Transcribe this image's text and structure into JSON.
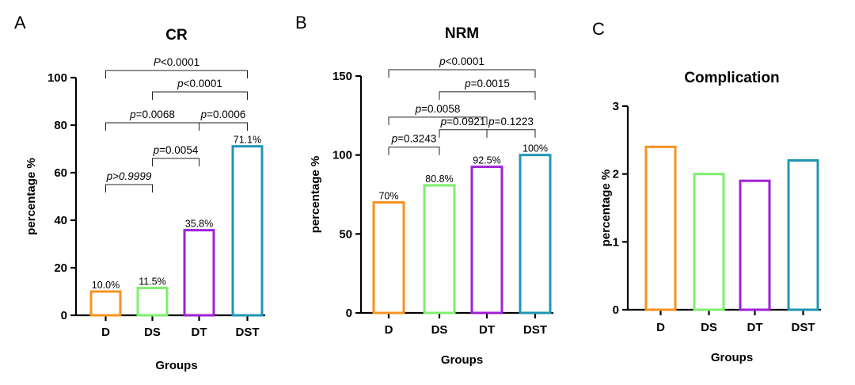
{
  "chart_data": [
    {
      "panel": "A",
      "type": "bar",
      "title": "CR",
      "xlabel": "Groups",
      "ylabel": "percentage %",
      "categories": [
        "D",
        "DS",
        "DT",
        "DST"
      ],
      "values": [
        10.0,
        11.5,
        35.8,
        71.1
      ],
      "data_labels": [
        "10.0%",
        "11.5%",
        "35.8%",
        "71.1%"
      ],
      "colors": [
        "#f7931e",
        "#7cf06b",
        "#a020d8",
        "#1f96b4"
      ],
      "ylim": [
        0,
        100
      ],
      "yticks": [
        0,
        20,
        40,
        60,
        80,
        100
      ],
      "grid": false,
      "comparisons": [
        {
          "from": 0,
          "to": 1,
          "y": 55,
          "prefix": "p",
          "text": ">0.9999"
        },
        {
          "from": 1,
          "to": 2,
          "y": 66,
          "prefix": "p",
          "text": "=0.0054"
        },
        {
          "from": 0,
          "to": 2,
          "y": 81,
          "prefix": "p",
          "text": "=0.0068"
        },
        {
          "from": 2,
          "to": 3,
          "y": 81,
          "prefix": "p",
          "text": "=0.0006"
        },
        {
          "from": 1,
          "to": 3,
          "y": 94,
          "prefix": "p",
          "text": "<0.0001"
        },
        {
          "from": 0,
          "to": 3,
          "y": 103,
          "prefix": "P",
          "text": "<0.0001"
        }
      ]
    },
    {
      "panel": "B",
      "type": "bar",
      "title": "NRM",
      "xlabel": "Groups",
      "ylabel": "percentage %",
      "categories": [
        "D",
        "DS",
        "DT",
        "DST"
      ],
      "values": [
        70,
        80.8,
        92.5,
        100
      ],
      "data_labels": [
        "70%",
        "80.8%",
        "92.5%",
        "100%"
      ],
      "colors": [
        "#f7931e",
        "#7cf06b",
        "#a020d8",
        "#1f96b4"
      ],
      "ylim": [
        0,
        150
      ],
      "yticks": [
        0,
        50,
        100,
        150
      ],
      "grid": false,
      "comparisons": [
        {
          "from": 0,
          "to": 1,
          "y": 105,
          "prefix": "p",
          "text": "=0.3243"
        },
        {
          "from": 1,
          "to": 2,
          "y": 116,
          "prefix": "p",
          "text": "=0.0921"
        },
        {
          "from": 2,
          "to": 3,
          "y": 116,
          "prefix": "p",
          "text": "=0.1223"
        },
        {
          "from": 0,
          "to": 2,
          "y": 124,
          "prefix": "p",
          "text": "=0.0058"
        },
        {
          "from": 1,
          "to": 3,
          "y": 140,
          "prefix": "p",
          "text": "=0.0015"
        },
        {
          "from": 0,
          "to": 3,
          "y": 154,
          "prefix": "p",
          "text": "<0.0001"
        }
      ]
    },
    {
      "panel": "C",
      "type": "bar",
      "title": "Complication",
      "xlabel": "Groups",
      "ylabel": "percentage %",
      "categories": [
        "D",
        "DS",
        "DT",
        "DST"
      ],
      "values": [
        2.4,
        2.0,
        1.9,
        2.2
      ],
      "data_labels": [],
      "colors": [
        "#f7931e",
        "#7cf06b",
        "#a020d8",
        "#1f96b4"
      ],
      "ylim": [
        0,
        3
      ],
      "yticks": [
        0,
        1,
        2,
        3
      ],
      "grid": false,
      "comparisons": []
    }
  ]
}
